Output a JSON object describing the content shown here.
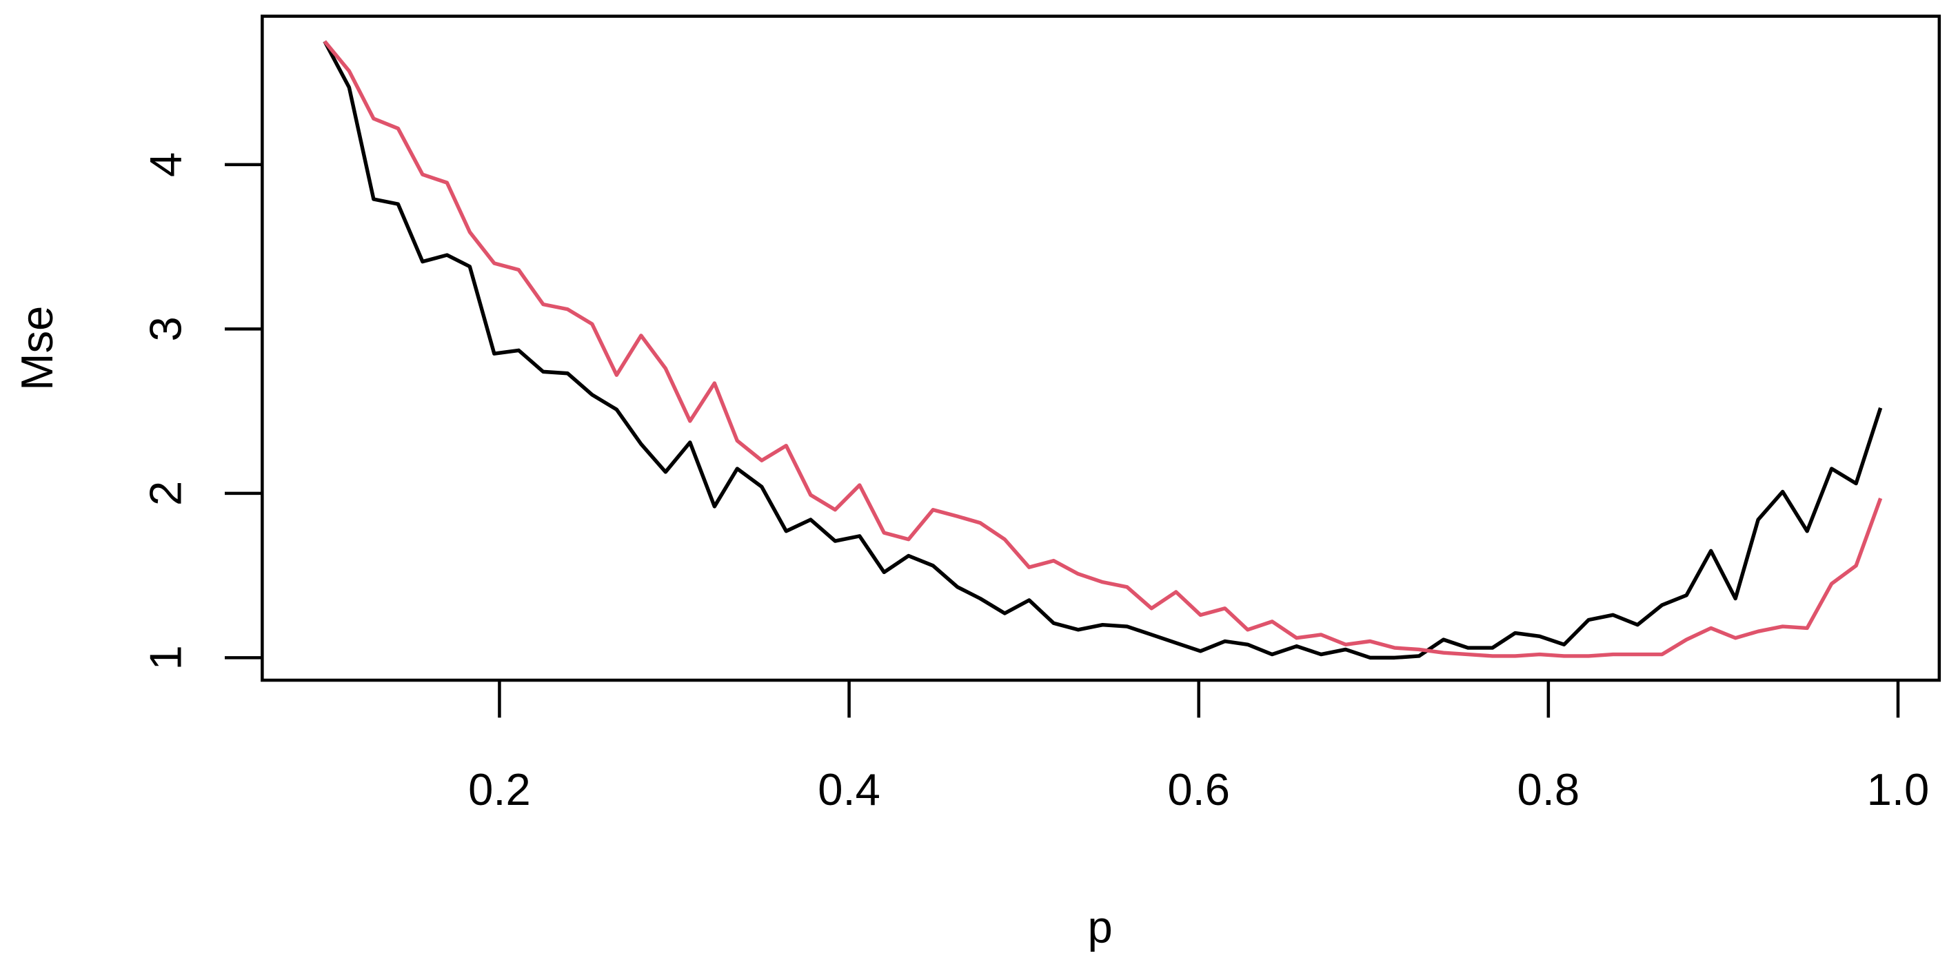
{
  "chart_data": {
    "type": "line",
    "x_label": "p",
    "y_label": "Mse",
    "x": [
      0.1,
      0.114,
      0.128,
      0.142,
      0.156,
      0.17,
      0.183,
      0.197,
      0.211,
      0.225,
      0.239,
      0.253,
      0.267,
      0.281,
      0.295,
      0.309,
      0.323,
      0.336,
      0.35,
      0.364,
      0.378,
      0.392,
      0.406,
      0.42,
      0.434,
      0.448,
      0.462,
      0.475,
      0.489,
      0.503,
      0.517,
      0.531,
      0.545,
      0.559,
      0.573,
      0.587,
      0.601,
      0.615,
      0.628,
      0.642,
      0.656,
      0.67,
      0.684,
      0.698,
      0.712,
      0.726,
      0.74,
      0.754,
      0.768,
      0.781,
      0.795,
      0.809,
      0.823,
      0.837,
      0.851,
      0.865,
      0.879,
      0.893,
      0.907,
      0.92,
      0.934,
      0.948,
      0.962,
      0.976,
      0.99
    ],
    "series": [
      {
        "color": "#000000",
        "values": [
          4.75,
          4.47,
          3.79,
          3.76,
          3.41,
          3.45,
          3.38,
          2.85,
          2.87,
          2.74,
          2.73,
          2.6,
          2.51,
          2.3,
          2.13,
          2.31,
          1.92,
          2.15,
          2.04,
          1.77,
          1.84,
          1.71,
          1.74,
          1.52,
          1.62,
          1.56,
          1.43,
          1.36,
          1.27,
          1.35,
          1.21,
          1.17,
          1.2,
          1.19,
          1.14,
          1.09,
          1.04,
          1.1,
          1.08,
          1.02,
          1.07,
          1.02,
          1.05,
          1.0,
          1.0,
          1.01,
          1.11,
          1.06,
          1.06,
          1.15,
          1.13,
          1.08,
          1.23,
          1.26,
          1.2,
          1.32,
          1.38,
          1.65,
          1.36,
          1.84,
          2.01,
          1.77,
          2.15,
          2.06,
          2.52
        ]
      },
      {
        "color": "#DF536B",
        "values": [
          4.75,
          4.57,
          4.28,
          4.22,
          3.94,
          3.89,
          3.59,
          3.4,
          3.36,
          3.15,
          3.12,
          3.03,
          2.72,
          2.96,
          2.76,
          2.44,
          2.67,
          2.32,
          2.2,
          2.29,
          1.99,
          1.9,
          2.05,
          1.76,
          1.72,
          1.9,
          1.86,
          1.82,
          1.72,
          1.55,
          1.59,
          1.51,
          1.46,
          1.43,
          1.3,
          1.4,
          1.26,
          1.3,
          1.17,
          1.22,
          1.12,
          1.14,
          1.08,
          1.1,
          1.06,
          1.05,
          1.03,
          1.02,
          1.01,
          1.01,
          1.02,
          1.01,
          1.01,
          1.02,
          1.02,
          1.02,
          1.11,
          1.18,
          1.12,
          1.16,
          1.19,
          1.18,
          1.45,
          1.56,
          1.97
        ]
      }
    ],
    "xlim": [
      0.0643,
      1.0236
    ],
    "ylim": [
      0.863,
      4.903
    ],
    "xticks": [
      0.2,
      0.4,
      0.6,
      0.8,
      {
        "value": 1,
        "label": "1.0"
      }
    ],
    "yticks": [
      1,
      2,
      3,
      4
    ]
  }
}
